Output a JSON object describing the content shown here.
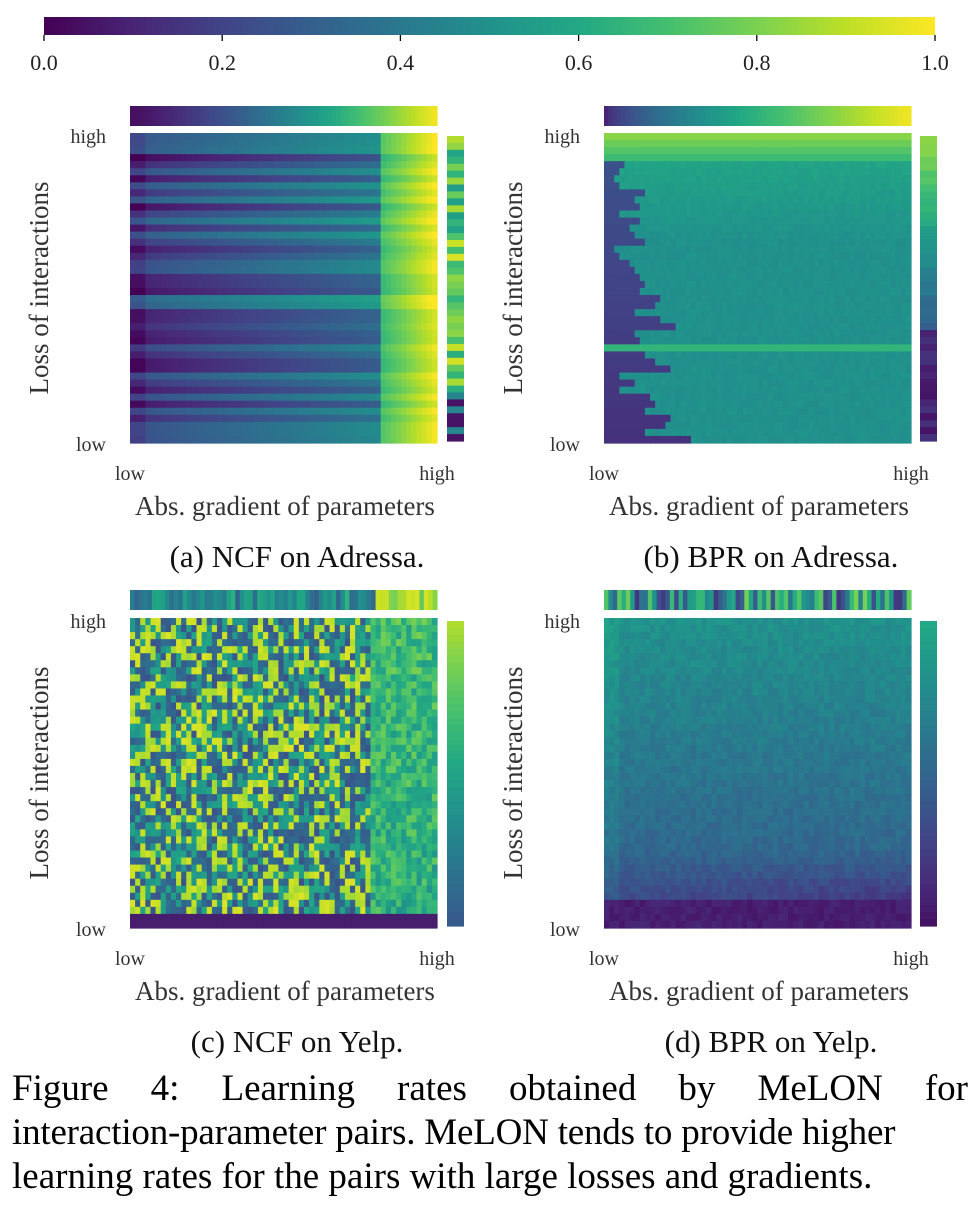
{
  "colorbar": {
    "ticks": [
      "0.0",
      "0.2",
      "0.4",
      "0.6",
      "0.8",
      "1.0"
    ],
    "range": [
      0.0,
      1.0
    ],
    "colormap": "viridis"
  },
  "chart_data": [
    {
      "type": "heatmap",
      "title": "(a) NCF on Adressa.",
      "xlabel": "Abs. gradient of parameters",
      "ylabel": "Loss of interactions",
      "x_ticks": [
        "low",
        "high"
      ],
      "y_ticks": [
        "high",
        "low"
      ],
      "pattern": "strong left-to-right increase; high-gradient columns reach ~0.85-0.95, low-gradient ~0.15-0.3",
      "top_marginal": "increasing from ~0.05 (low gradient) to ~0.95 (high gradient)",
      "right_marginal": "mixed, mostly ~0.6-0.9 with low bands near the bottom"
    },
    {
      "type": "heatmap",
      "title": "(b) BPR on Adressa.",
      "xlabel": "Abs. gradient of parameters",
      "ylabel": "Loss of interactions",
      "x_ticks": [
        "low",
        "high"
      ],
      "y_ticks": [
        "high",
        "low"
      ],
      "pattern": "high-loss rows near the top are brightest (~0.8-0.9); most cells ~0.5-0.55; low-loss rows at low gradient ~0.15-0.25",
      "top_marginal": "increasing from ~0.1 to ~0.95",
      "right_marginal": "high at the top (~0.8), dropping to ~0.05 at the bottom"
    },
    {
      "type": "heatmap",
      "title": "(c) NCF on Yelp.",
      "xlabel": "Abs. gradient of parameters",
      "ylabel": "Loss of interactions",
      "x_ticks": [
        "low",
        "high"
      ],
      "y_ticks": [
        "high",
        "low"
      ],
      "pattern": "noisy mixture of ~0.2-0.9 values; smoother mid-high (~0.6-0.8) at high gradient; darkest along the low-loss bottom rows",
      "top_marginal": "noisy ~0.3-0.6, rising to ~0.9 at high gradient",
      "right_marginal": "high at the top (~0.85) decreasing to ~0.25 at the bottom"
    },
    {
      "type": "heatmap",
      "title": "(d) BPR on Yelp.",
      "xlabel": "Abs. gradient of parameters",
      "ylabel": "Loss of interactions",
      "x_ticks": [
        "low",
        "high"
      ],
      "y_ticks": [
        "high",
        "low"
      ],
      "pattern": "mostly ~0.3-0.45; slightly higher (~0.55) at the top, darker (~0.05-0.15) at the bottom rows",
      "top_marginal": "noisy ~0.1-0.8",
      "right_marginal": "~0.6 at the top decreasing to ~0.05 at the bottom"
    }
  ],
  "caption": {
    "line1": "Figure 4: Learning rates obtained by MeLON for",
    "line2": "interaction-parameter pairs. MeLON tends to provide higher",
    "line3": "learning rates for the pairs with large losses and gradients."
  }
}
